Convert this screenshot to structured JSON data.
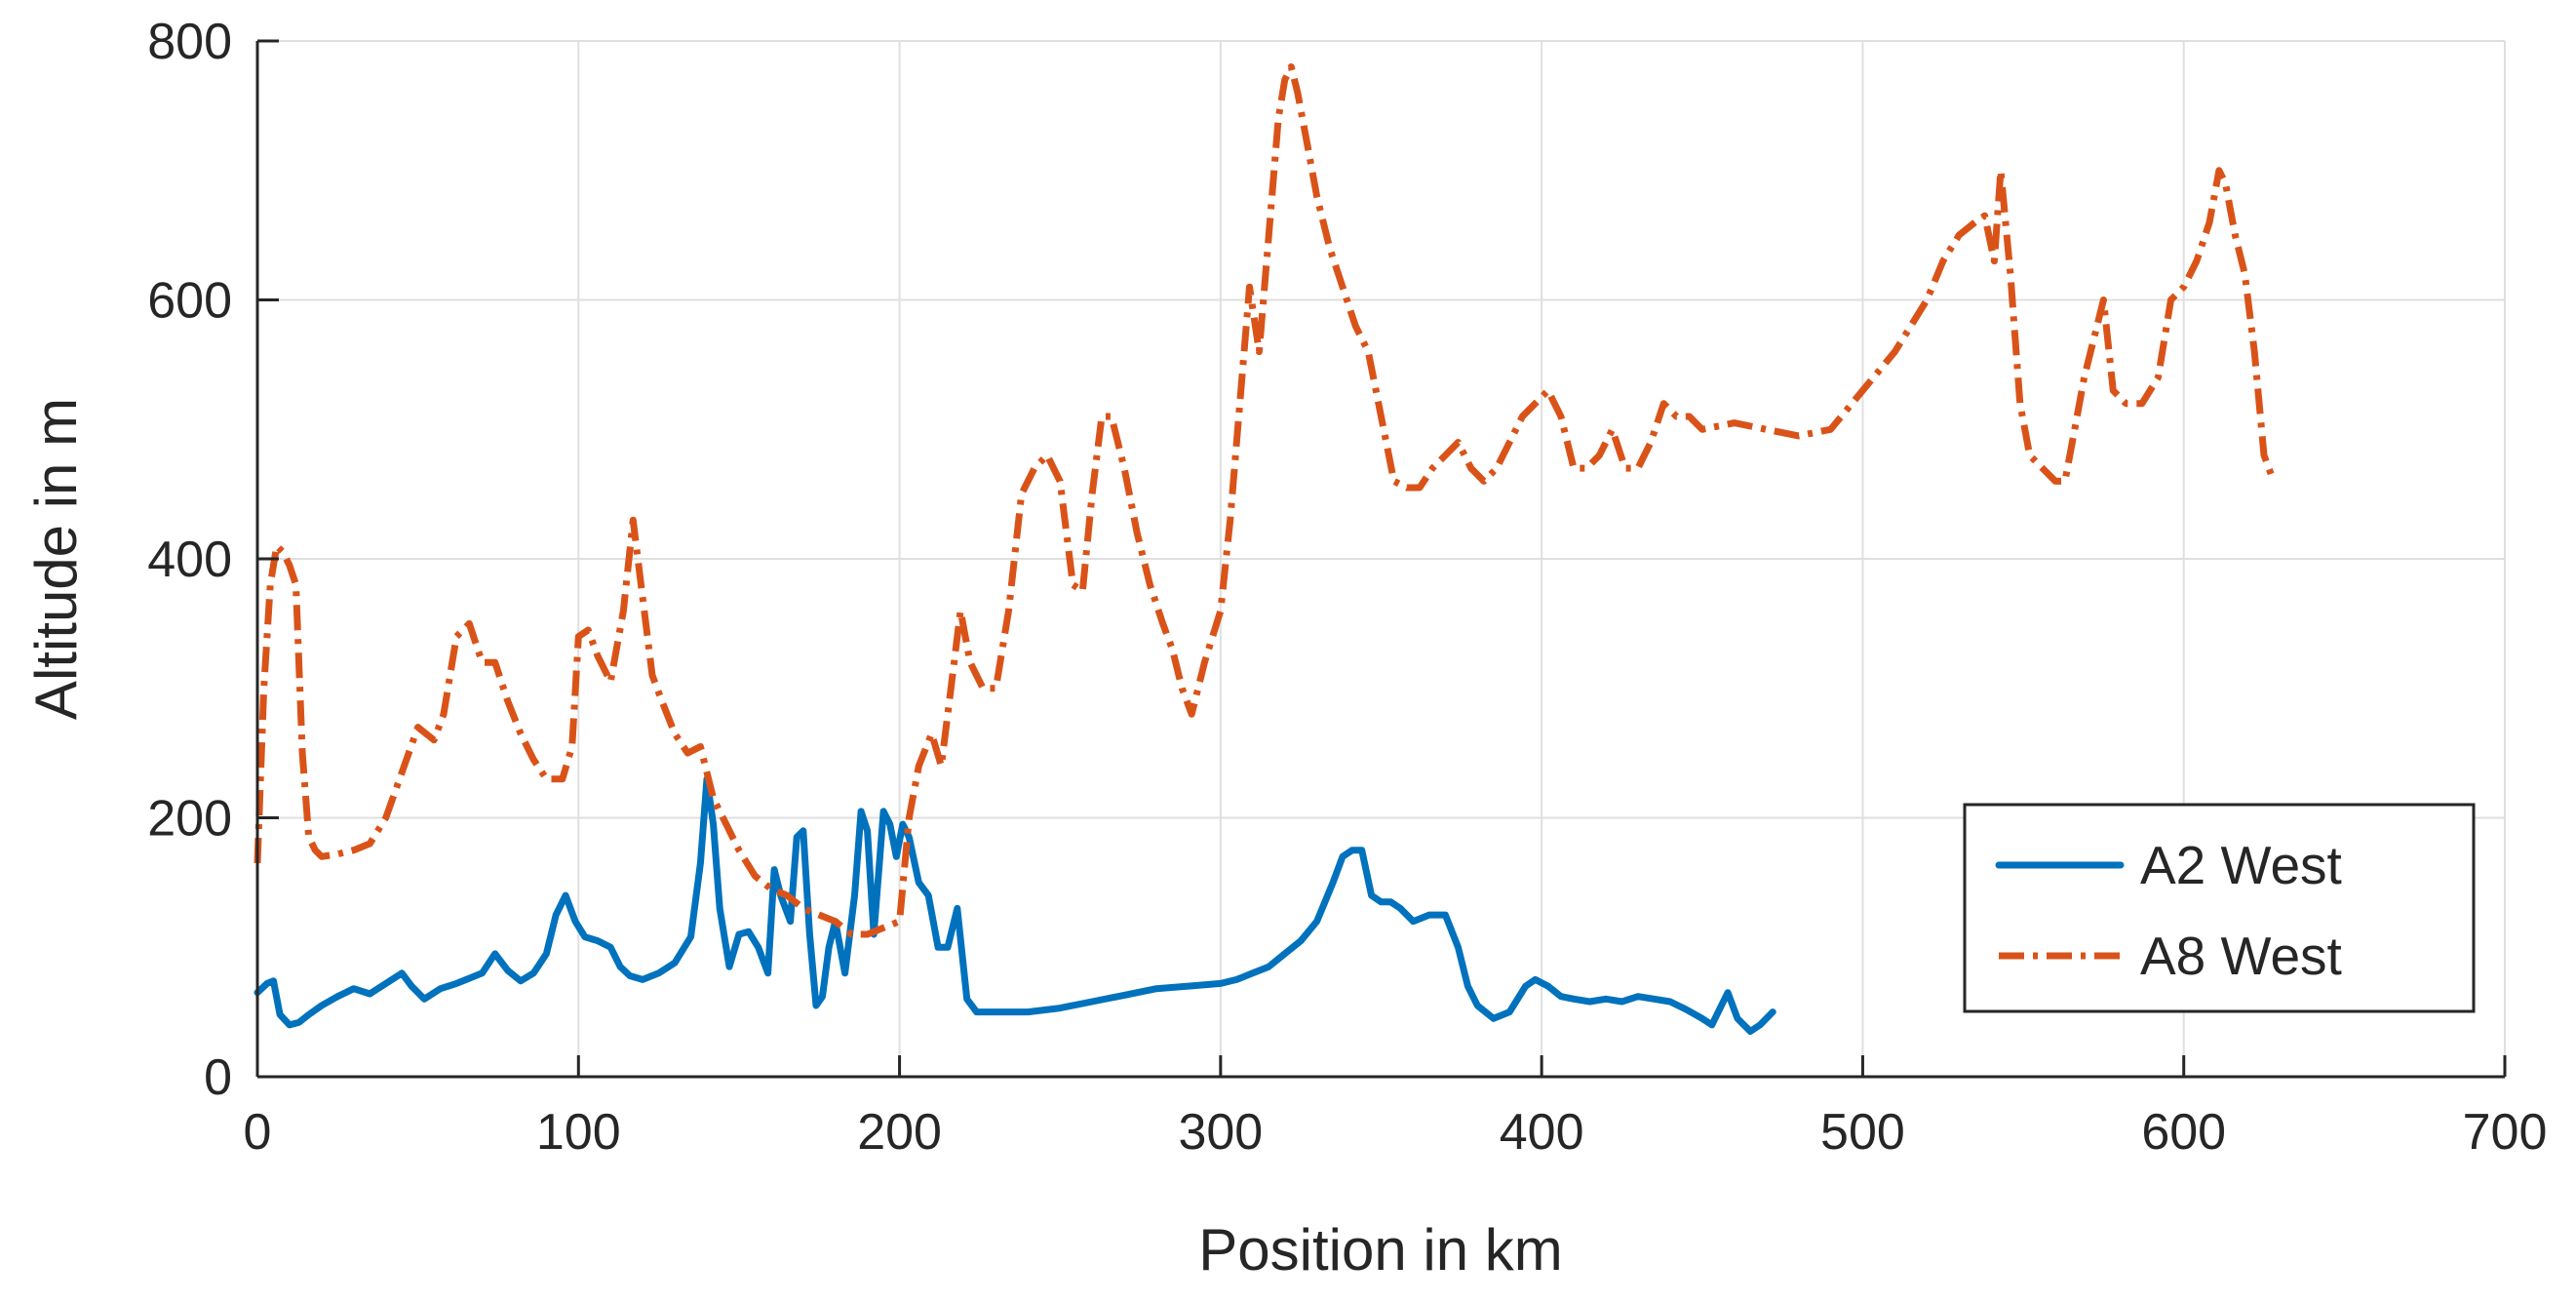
{
  "chart_data": {
    "type": "line",
    "title": "",
    "xlabel": "Position in km",
    "ylabel": "Altitude in m",
    "xlim": [
      0,
      700
    ],
    "ylim": [
      0,
      800
    ],
    "xticks": [
      0,
      100,
      200,
      300,
      400,
      500,
      600,
      700
    ],
    "yticks": [
      0,
      200,
      400,
      600,
      800
    ],
    "grid": true,
    "legend_position": "bottom-right",
    "series": [
      {
        "name": "A2 West",
        "color": "#0072BD",
        "style": "solid",
        "x": [
          0,
          3,
          5,
          7,
          10,
          13,
          16,
          20,
          25,
          30,
          35,
          40,
          45,
          48,
          52,
          57,
          62,
          66,
          70,
          74,
          78,
          82,
          86,
          90,
          93,
          96,
          99,
          102,
          106,
          110,
          113,
          116,
          120,
          125,
          130,
          135,
          138,
          140,
          142,
          144,
          147,
          150,
          153,
          156,
          159,
          161,
          163,
          166,
          168,
          170,
          172,
          174,
          176,
          178,
          180,
          183,
          186,
          188,
          190,
          192,
          195,
          197,
          199,
          201,
          203,
          206,
          209,
          212,
          215,
          218,
          221,
          224,
          230,
          240,
          250,
          260,
          270,
          280,
          290,
          300,
          305,
          310,
          315,
          320,
          325,
          330,
          335,
          338,
          341,
          344,
          347,
          350,
          353,
          356,
          360,
          365,
          370,
          374,
          377,
          380,
          385,
          390,
          395,
          398,
          402,
          406,
          410,
          415,
          420,
          425,
          430,
          435,
          440,
          445,
          450,
          453,
          456,
          458,
          461,
          465,
          468,
          472
        ],
        "y": [
          65,
          72,
          74,
          48,
          40,
          42,
          48,
          55,
          62,
          68,
          64,
          72,
          80,
          70,
          60,
          68,
          72,
          76,
          80,
          95,
          82,
          74,
          80,
          95,
          125,
          140,
          120,
          108,
          105,
          100,
          85,
          78,
          75,
          80,
          88,
          108,
          165,
          230,
          195,
          130,
          85,
          110,
          112,
          100,
          80,
          160,
          140,
          120,
          185,
          190,
          110,
          55,
          62,
          100,
          120,
          80,
          140,
          205,
          190,
          110,
          205,
          195,
          170,
          195,
          185,
          150,
          140,
          100,
          100,
          130,
          60,
          50,
          50,
          50,
          53,
          58,
          63,
          68,
          70,
          72,
          75,
          80,
          85,
          95,
          105,
          120,
          150,
          170,
          175,
          175,
          140,
          135,
          135,
          130,
          120,
          125,
          125,
          100,
          70,
          55,
          45,
          50,
          70,
          75,
          70,
          62,
          60,
          58,
          60,
          58,
          62,
          60,
          58,
          52,
          45,
          40,
          55,
          65,
          45,
          35,
          40,
          50
        ]
      },
      {
        "name": "A8 West",
        "color": "#D95319",
        "style": "dash-dot",
        "x": [
          0,
          2,
          4,
          6,
          8,
          10,
          12,
          14,
          16,
          18,
          20,
          25,
          30,
          35,
          40,
          45,
          50,
          55,
          58,
          62,
          66,
          70,
          74,
          78,
          82,
          86,
          90,
          95,
          98,
          100,
          103,
          106,
          110,
          114,
          117,
          120,
          123,
          126,
          130,
          134,
          138,
          142,
          146,
          150,
          155,
          160,
          165,
          170,
          175,
          180,
          185,
          190,
          195,
          200,
          203,
          206,
          210,
          213,
          216,
          219,
          222,
          226,
          230,
          234,
          238,
          242,
          246,
          250,
          254,
          257,
          260,
          263,
          266,
          270,
          274,
          278,
          282,
          285,
          288,
          291,
          295,
          300,
          303,
          306,
          309,
          312,
          315,
          318,
          320,
          322,
          324,
          327,
          330,
          334,
          338,
          342,
          346,
          350,
          354,
          358,
          362,
          366,
          370,
          374,
          378,
          382,
          386,
          390,
          394,
          398,
          402,
          406,
          410,
          414,
          418,
          422,
          426,
          430,
          434,
          438,
          442,
          446,
          450,
          460,
          470,
          480,
          490,
          500,
          510,
          520,
          525,
          530,
          535,
          538,
          541,
          543,
          546,
          549,
          552,
          556,
          560,
          563,
          566,
          569,
          572,
          575,
          578,
          582,
          587,
          592,
          596,
          600,
          604,
          608,
          611,
          613,
          616,
          619,
          622,
          625,
          628
        ],
        "y": [
          165,
          300,
          380,
          410,
          405,
          395,
          380,
          250,
          185,
          175,
          170,
          172,
          175,
          180,
          200,
          235,
          270,
          260,
          280,
          340,
          350,
          320,
          320,
          290,
          265,
          245,
          230,
          230,
          255,
          340,
          345,
          325,
          305,
          360,
          430,
          370,
          310,
          290,
          265,
          250,
          255,
          215,
          195,
          175,
          155,
          145,
          140,
          130,
          125,
          120,
          110,
          110,
          115,
          120,
          200,
          240,
          265,
          240,
          300,
          360,
          320,
          300,
          300,
          360,
          450,
          470,
          480,
          460,
          380,
          375,
          450,
          510,
          510,
          470,
          420,
          380,
          350,
          330,
          300,
          280,
          320,
          360,
          430,
          520,
          610,
          560,
          650,
          740,
          770,
          780,
          760,
          720,
          680,
          640,
          610,
          580,
          560,
          510,
          460,
          455,
          455,
          470,
          480,
          490,
          470,
          460,
          470,
          490,
          510,
          520,
          530,
          510,
          470,
          470,
          480,
          500,
          470,
          470,
          490,
          520,
          510,
          510,
          500,
          505,
          500,
          495,
          500,
          530,
          560,
          600,
          630,
          650,
          660,
          665,
          630,
          700,
          620,
          520,
          480,
          470,
          460,
          460,
          500,
          540,
          570,
          600,
          530,
          520,
          520,
          540,
          600,
          610,
          630,
          660,
          700,
          690,
          650,
          620,
          560,
          480,
          460
        ]
      }
    ]
  }
}
